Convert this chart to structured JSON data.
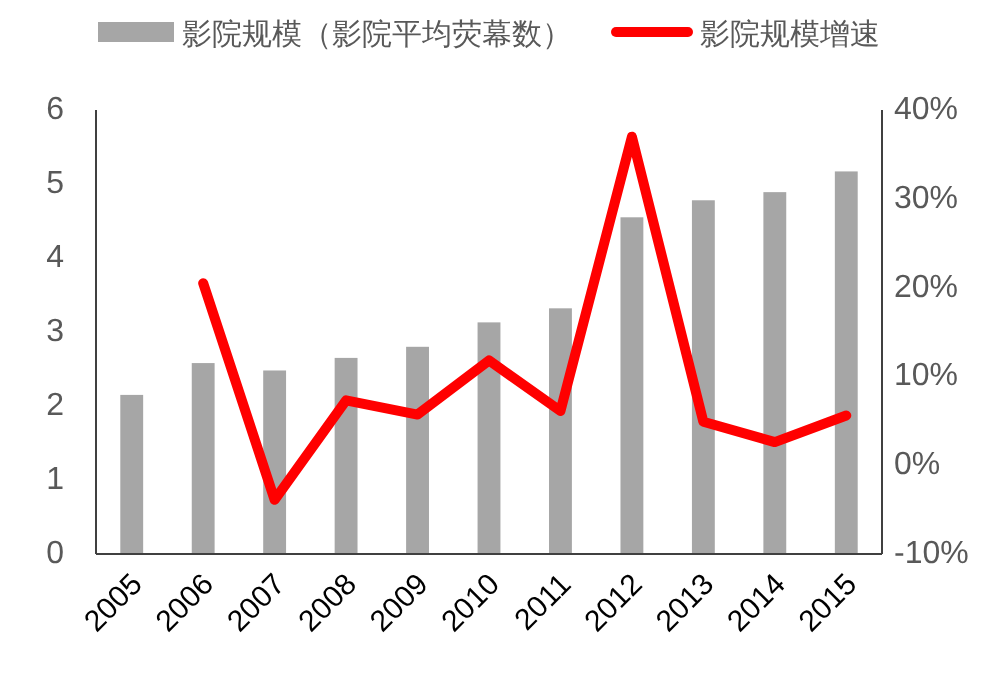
{
  "chart_data": {
    "type": "bar",
    "categories": [
      "2005",
      "2006",
      "2007",
      "2008",
      "2009",
      "2010",
      "2011",
      "2012",
      "2013",
      "2014",
      "2015"
    ],
    "series": [
      {
        "name": "影院规模（影院平均荧幕数）",
        "color": "#a6a6a6",
        "values": [
          2.15,
          2.58,
          2.48,
          2.65,
          2.8,
          3.13,
          3.32,
          4.55,
          4.78,
          4.89,
          5.17
        ]
      },
      {
        "name": "影院规模增速",
        "type": "line",
        "axis": "y2",
        "color": "#ff0000",
        "values": [
          null,
          20.5,
          -3.9,
          7.3,
          5.7,
          11.8,
          6.1,
          37.0,
          4.9,
          2.6,
          5.6
        ]
      }
    ],
    "ylim": [
      0,
      6
    ],
    "yticks": [
      0,
      1,
      2,
      3,
      4,
      5,
      6
    ],
    "y2lim": [
      -10,
      40
    ],
    "y2ticks": [
      {
        "value": -10,
        "label": "-10%"
      },
      {
        "value": 0,
        "label": "0%"
      },
      {
        "value": 10,
        "label": "10%"
      },
      {
        "value": 20,
        "label": "20%"
      },
      {
        "value": 30,
        "label": "30%"
      },
      {
        "value": 40,
        "label": "40%"
      }
    ],
    "legend": "top",
    "grid": false,
    "marker": "none",
    "line_style": "solid"
  }
}
